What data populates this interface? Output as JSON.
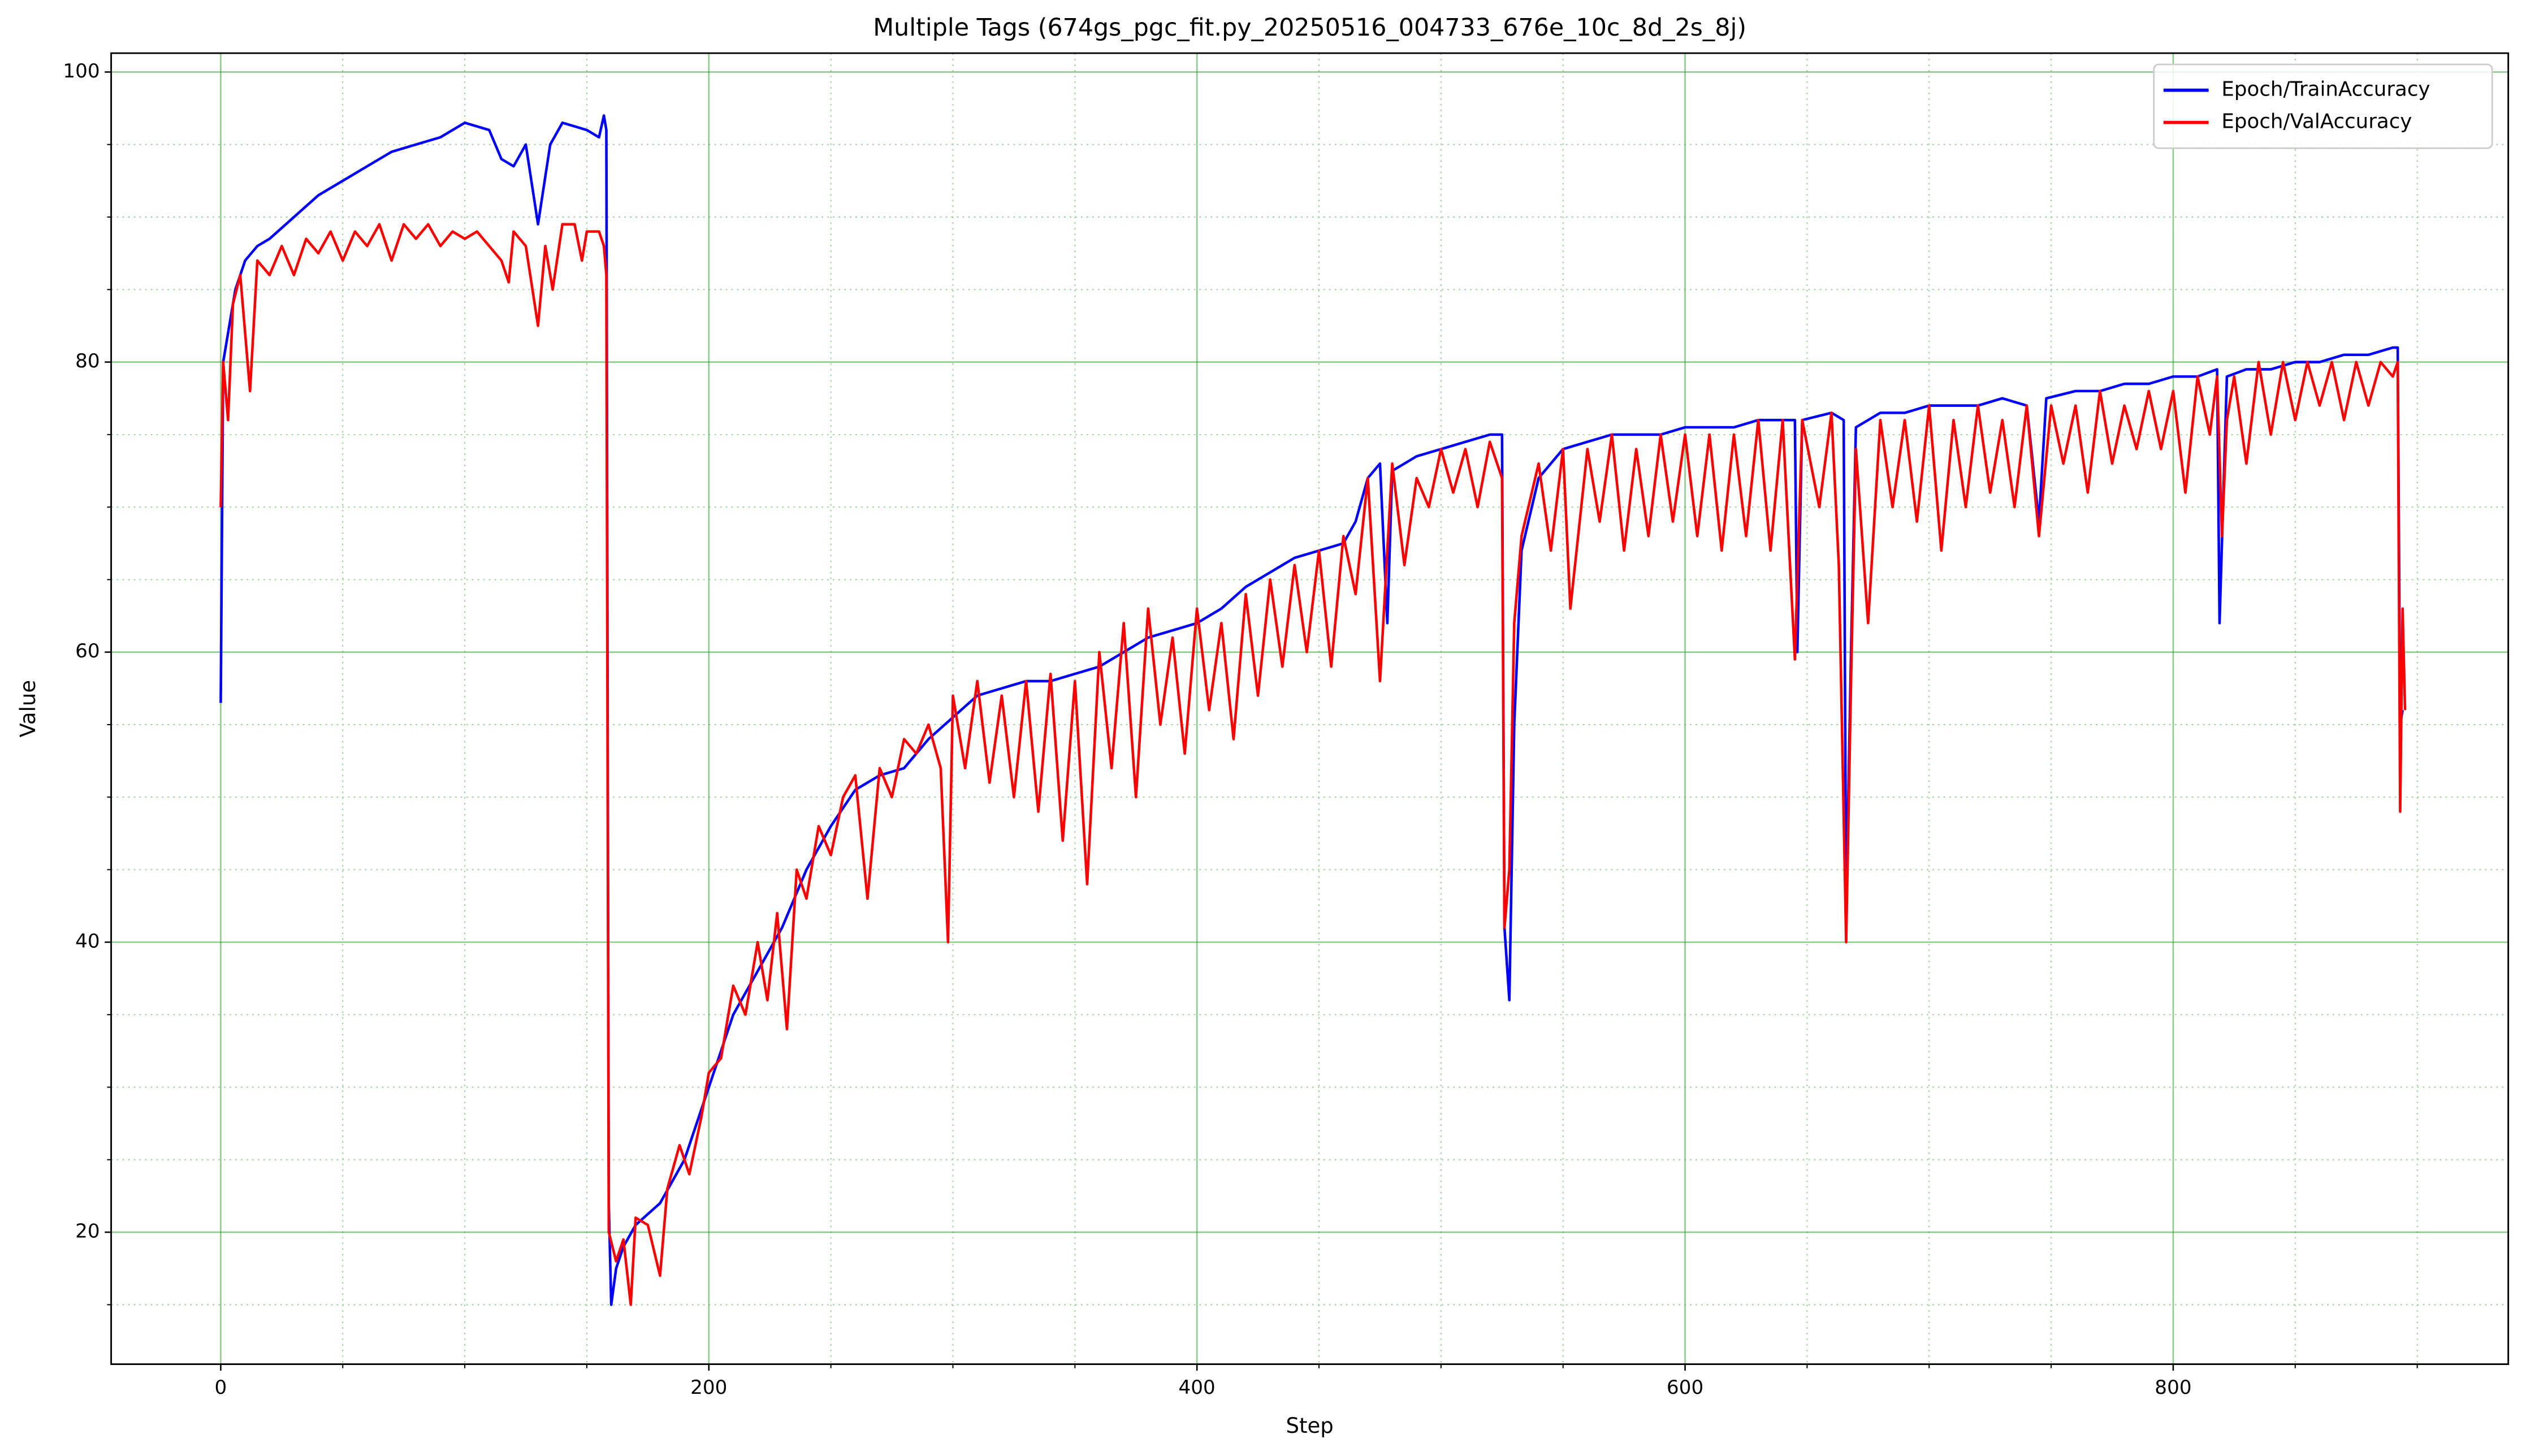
{
  "chart_data": {
    "type": "line",
    "title": "Multiple Tags (674gs_pgc_fit.py_20250516_004733_676e_10c_8d_2s_8j)",
    "x_label": "Step",
    "y_label": "Value",
    "xlim": [
      -44.9,
      937.3
    ],
    "ylim": [
      10.9,
      101.3
    ],
    "xticks": [
      0,
      200,
      400,
      600,
      800
    ],
    "yticks": [
      20,
      40,
      60,
      80,
      100
    ],
    "x_minor_ticks": [
      50,
      100,
      150,
      250,
      300,
      350,
      450,
      500,
      550,
      650,
      700,
      750,
      850,
      900
    ],
    "y_minor_ticks": [
      15,
      25,
      30,
      35,
      45,
      50,
      55,
      65,
      70,
      75,
      85,
      90,
      95
    ],
    "grid": true,
    "legend": "upper right",
    "series": [
      {
        "name": "Epoch/TrainAccuracy",
        "color": "#0000ff",
        "x": [
          0,
          1,
          3,
          6,
          10,
          15,
          20,
          30,
          40,
          50,
          60,
          70,
          80,
          90,
          100,
          110,
          115,
          120,
          125,
          130,
          135,
          140,
          150,
          155,
          157,
          158,
          159,
          160,
          162,
          165,
          170,
          180,
          190,
          200,
          210,
          220,
          230,
          240,
          250,
          260,
          270,
          280,
          290,
          300,
          310,
          320,
          330,
          340,
          350,
          360,
          370,
          380,
          390,
          400,
          410,
          420,
          430,
          440,
          450,
          460,
          465,
          470,
          475,
          478,
          480,
          490,
          500,
          510,
          520,
          525,
          526,
          528,
          530,
          533,
          540,
          550,
          560,
          570,
          580,
          590,
          600,
          610,
          620,
          630,
          640,
          645,
          646,
          648,
          660,
          665,
          666,
          668,
          670,
          680,
          690,
          700,
          710,
          720,
          730,
          740,
          745,
          748,
          760,
          770,
          780,
          790,
          800,
          810,
          818,
          819,
          822,
          830,
          840,
          850,
          860,
          870,
          880,
          890,
          892,
          893,
          894
        ],
        "values": [
          56.5,
          80,
          82,
          85,
          87,
          88,
          88.5,
          90,
          91.5,
          92.5,
          93.5,
          94.5,
          95,
          95.5,
          96.5,
          96,
          94,
          93.5,
          95,
          89.5,
          95,
          96.5,
          96,
          95.5,
          97,
          96,
          22,
          15,
          17.5,
          19,
          20.5,
          22,
          25,
          30,
          35,
          38,
          41,
          45,
          48,
          50.5,
          51.5,
          52,
          54,
          55.5,
          57,
          57.5,
          58,
          58,
          58.5,
          59,
          60,
          61,
          61.5,
          62,
          63,
          64.5,
          65.5,
          66.5,
          67,
          67.5,
          69,
          72,
          73,
          62,
          72.5,
          73.5,
          74,
          74.5,
          75,
          75,
          41,
          36,
          55,
          67,
          72,
          74,
          74.5,
          75,
          75,
          75,
          75.5,
          75.5,
          75.5,
          76,
          76,
          76,
          60,
          76,
          76.5,
          76,
          42,
          60,
          75.5,
          76.5,
          76.5,
          77,
          77,
          77,
          77.5,
          77,
          69,
          77.5,
          78,
          78,
          78.5,
          78.5,
          79,
          79,
          79.5,
          62,
          79,
          79.5,
          79.5,
          80,
          80,
          80.5,
          80.5,
          81,
          81,
          55,
          56
        ]
      },
      {
        "name": "Epoch/ValAccuracy",
        "color": "#ff0000",
        "x": [
          0,
          1,
          3,
          5,
          8,
          12,
          15,
          20,
          25,
          30,
          35,
          40,
          45,
          50,
          55,
          60,
          65,
          70,
          75,
          80,
          85,
          90,
          95,
          100,
          105,
          110,
          115,
          118,
          120,
          125,
          130,
          133,
          136,
          140,
          145,
          148,
          150,
          155,
          157,
          158,
          159,
          162,
          165,
          168,
          170,
          175,
          180,
          183,
          188,
          192,
          197,
          200,
          205,
          210,
          215,
          220,
          224,
          228,
          232,
          236,
          240,
          245,
          250,
          255,
          260,
          265,
          270,
          275,
          280,
          285,
          290,
          295,
          298,
          300,
          305,
          310,
          315,
          320,
          325,
          330,
          335,
          340,
          345,
          350,
          355,
          360,
          365,
          370,
          375,
          380,
          385,
          390,
          395,
          400,
          405,
          410,
          415,
          420,
          425,
          430,
          435,
          440,
          445,
          450,
          455,
          460,
          465,
          470,
          475,
          480,
          485,
          490,
          495,
          500,
          505,
          510,
          515,
          520,
          525,
          526,
          528,
          530,
          533,
          540,
          545,
          550,
          553,
          560,
          565,
          570,
          575,
          580,
          585,
          590,
          595,
          600,
          605,
          610,
          615,
          620,
          625,
          630,
          635,
          640,
          643,
          645,
          648,
          655,
          660,
          663,
          666,
          668,
          670,
          675,
          680,
          685,
          690,
          695,
          700,
          705,
          710,
          715,
          720,
          725,
          730,
          735,
          740,
          745,
          750,
          755,
          760,
          765,
          770,
          775,
          780,
          785,
          790,
          795,
          800,
          805,
          810,
          815,
          818,
          820,
          822,
          825,
          830,
          835,
          840,
          845,
          850,
          855,
          860,
          865,
          870,
          875,
          880,
          885,
          890,
          892,
          893,
          894,
          895
        ],
        "values": [
          70,
          80,
          76,
          84,
          86,
          78,
          87,
          86,
          88,
          86,
          88.5,
          87.5,
          89,
          87,
          89,
          88,
          89.5,
          87,
          89.5,
          88.5,
          89.5,
          88,
          89,
          88.5,
          89,
          88,
          87,
          85.5,
          89,
          88,
          82.5,
          88,
          85,
          89.5,
          89.5,
          87,
          89,
          89,
          88,
          86,
          20,
          18,
          19.5,
          15,
          21,
          20.5,
          17,
          23,
          26,
          24,
          28,
          31,
          32,
          37,
          35,
          40,
          36,
          42,
          34,
          45,
          43,
          48,
          46,
          50,
          51.5,
          43,
          52,
          50,
          54,
          53,
          55,
          52,
          40,
          57,
          52,
          58,
          51,
          57,
          50,
          58,
          49,
          58.5,
          47,
          58,
          44,
          60,
          52,
          62,
          50,
          63,
          55,
          61,
          53,
          63,
          56,
          62,
          54,
          64,
          57,
          65,
          59,
          66,
          60,
          67,
          59,
          68,
          64,
          72,
          58,
          73,
          66,
          72,
          70,
          74,
          71,
          74,
          70,
          74.5,
          72,
          41,
          45,
          62,
          68,
          73,
          67,
          74,
          63,
          74,
          69,
          75,
          67,
          74,
          68,
          75,
          69,
          75,
          68,
          75,
          67,
          75,
          68,
          76,
          67,
          76,
          66,
          59.5,
          76,
          70,
          76.5,
          66,
          40,
          58,
          74,
          62,
          76,
          70,
          76,
          69,
          77,
          67,
          76,
          70,
          77,
          71,
          76,
          70,
          77,
          68,
          77,
          73,
          77,
          71,
          78,
          73,
          77,
          74,
          78,
          74,
          78,
          71,
          79,
          75,
          79,
          68,
          76,
          79,
          73,
          80,
          75,
          80,
          76,
          80,
          77,
          80,
          76,
          80,
          77,
          80,
          79,
          80,
          49,
          63,
          56
        ]
      }
    ]
  }
}
